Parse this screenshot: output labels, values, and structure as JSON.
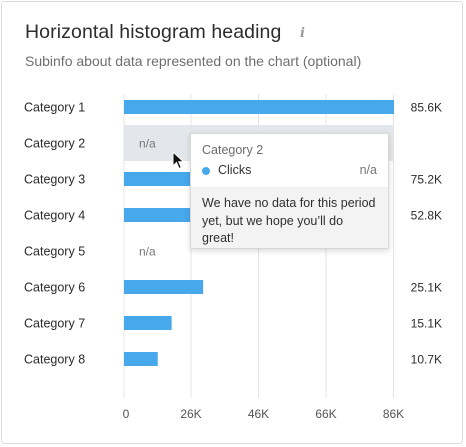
{
  "card": {
    "title": "Horizontal histogram heading",
    "info_icon": "info-icon",
    "subtitle": "Subinfo about data represented on the chart (optional)"
  },
  "chart_data": {
    "type": "bar",
    "orientation": "horizontal",
    "categories": [
      "Category 1",
      "Category 2",
      "Category 3",
      "Category 4",
      "Category 5",
      "Category 6",
      "Category 7",
      "Category 8"
    ],
    "values": [
      85600,
      null,
      75200,
      52800,
      null,
      25100,
      15100,
      10700
    ],
    "value_labels": [
      "85.6K",
      "n/a",
      "75.2K",
      "52.8K",
      "n/a",
      "25.1K",
      "15.1K",
      "10.7K"
    ],
    "x_ticks": [
      "0",
      "26K",
      "46K",
      "66K",
      "86K"
    ],
    "bar_color": "#47a8ec",
    "highlight_color": "#e3e6ea",
    "highlighted_category": "Category 2",
    "grid": true
  },
  "tooltip": {
    "title": "Category 2",
    "series_name": "Clicks",
    "series_color": "#47a8ec",
    "value": "n/a",
    "message": "We have no data for this period yet, but we hope you’ll do great!"
  }
}
